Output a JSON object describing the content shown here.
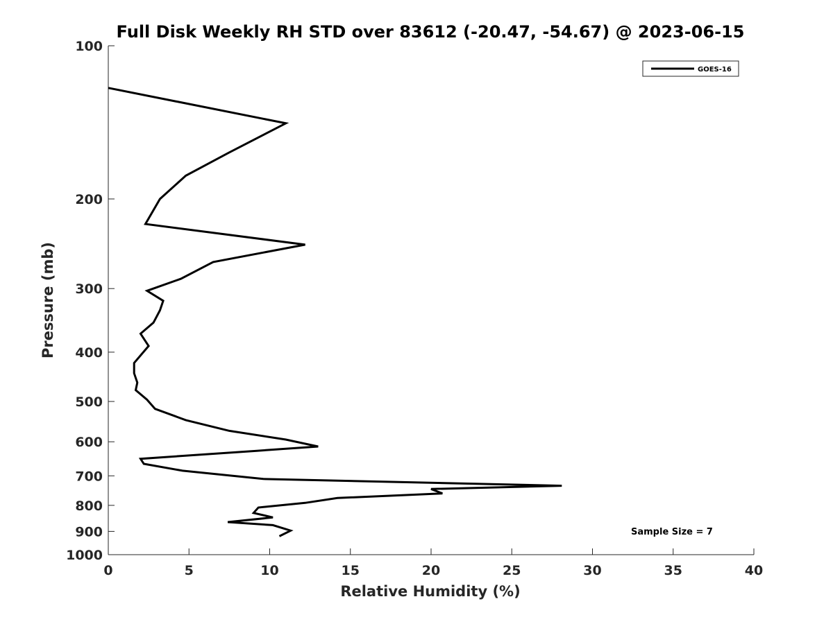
{
  "chart_data": {
    "type": "line",
    "title": "Full Disk Weekly RH STD over 83612 (-20.47, -54.67) @ 2023-06-15",
    "xlabel": "Relative Humidity (%)",
    "ylabel": "Pressure (mb)",
    "xlim": [
      0,
      40
    ],
    "ylim": [
      100,
      1000
    ],
    "yscale": "log",
    "y_reversed": true,
    "grid": false,
    "x_ticks": [
      "0",
      "5",
      "10",
      "15",
      "20",
      "25",
      "30",
      "35",
      "40"
    ],
    "y_ticks": [
      "100",
      "200",
      "300",
      "400",
      "500",
      "600",
      "700",
      "800",
      "900",
      "1000"
    ],
    "legend": {
      "position": "top-right",
      "entries": [
        "GOES-16"
      ]
    },
    "annotation": "Sample Size = 7",
    "series": [
      {
        "name": "GOES-16",
        "color": "#000000",
        "x": [
          0.0,
          11.0,
          7.5,
          4.8,
          3.2,
          2.3,
          12.2,
          6.5,
          4.5,
          2.4,
          3.4,
          3.2,
          2.8,
          2.0,
          2.5,
          1.6,
          1.6,
          1.8,
          1.7,
          2.4,
          2.9,
          4.8,
          7.5,
          11.0,
          13.0,
          9.2,
          2.0,
          2.2,
          4.6,
          9.6,
          28.1,
          20.0,
          20.7,
          14.2,
          12.2,
          9.3,
          9.0,
          10.2,
          7.4,
          10.2,
          11.3,
          10.6
        ],
        "y": [
          121,
          142,
          162,
          180,
          200,
          224,
          246,
          266,
          287,
          303,
          317,
          331,
          350,
          368,
          389,
          420,
          440,
          459,
          475,
          496,
          517,
          544,
          571,
          594,
          613,
          625,
          648,
          663,
          684,
          710,
          732,
          743,
          758,
          774,
          791,
          808,
          828,
          845,
          863,
          875,
          897,
          920
        ]
      }
    ]
  }
}
